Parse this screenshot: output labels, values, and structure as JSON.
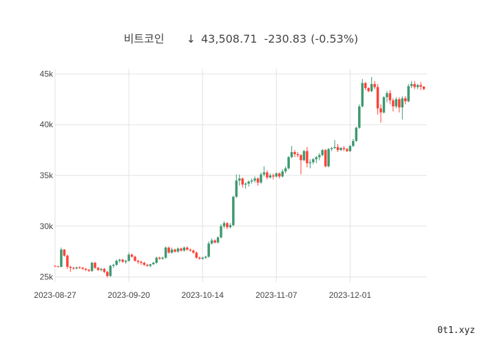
{
  "header": {
    "name": "비트코인",
    "arrow": "↓",
    "price": "43,508.71",
    "change": "-230.83",
    "change_pct": "(-0.53%)"
  },
  "watermark": "0t1.xyz",
  "chart_data": {
    "type": "candlestick",
    "title": "비트코인      ↓ 43,508.71   -230.83 (-0.53%)",
    "xlabel": "",
    "ylabel": "",
    "ylim": [
      24500,
      45500
    ],
    "xlim": [
      "2023-08-27",
      "2023-12-26"
    ],
    "grid": true,
    "legend": "none",
    "x_ticks": [
      "2023-08-27",
      "2023-09-20",
      "2023-10-14",
      "2023-11-07",
      "2023-12-01"
    ],
    "y_ticks": [
      {
        "value": 25000,
        "label": "25k"
      },
      {
        "value": 30000,
        "label": "30k"
      },
      {
        "value": 35000,
        "label": "35k"
      },
      {
        "value": 40000,
        "label": "40k"
      },
      {
        "value": 45000,
        "label": "45k"
      }
    ],
    "colors": {
      "up": "#3d9970",
      "down": "#ff4136"
    },
    "start_date": "2023-08-27",
    "ohlc": [
      [
        26100,
        26150,
        26000,
        26050
      ],
      [
        26050,
        26100,
        25950,
        26000
      ],
      [
        26000,
        27900,
        25950,
        27700
      ],
      [
        27700,
        27750,
        27000,
        27100
      ],
      [
        27100,
        27200,
        25800,
        26000
      ],
      [
        26000,
        26100,
        25500,
        25900
      ],
      [
        25900,
        26000,
        25700,
        25850
      ],
      [
        25850,
        26000,
        25750,
        25950
      ],
      [
        25950,
        26050,
        25800,
        25900
      ],
      [
        25900,
        26000,
        25700,
        25800
      ],
      [
        25800,
        25900,
        25600,
        25700
      ],
      [
        25700,
        25800,
        25500,
        25600
      ],
      [
        25600,
        26500,
        25500,
        26400
      ],
      [
        26400,
        26500,
        25800,
        25900
      ],
      [
        25900,
        26000,
        25600,
        25700
      ],
      [
        25700,
        25900,
        25550,
        25800
      ],
      [
        25800,
        25900,
        25400,
        25500
      ],
      [
        25500,
        25600,
        24950,
        25100
      ],
      [
        25100,
        26200,
        25000,
        26100
      ],
      [
        26100,
        26300,
        25900,
        26200
      ],
      [
        26200,
        26700,
        26100,
        26600
      ],
      [
        26600,
        26800,
        26400,
        26700
      ],
      [
        26700,
        26800,
        26400,
        26500
      ],
      [
        26500,
        26700,
        26300,
        26600
      ],
      [
        26600,
        27400,
        26500,
        27200
      ],
      [
        27200,
        27300,
        26900,
        27000
      ],
      [
        27000,
        27100,
        26500,
        26600
      ],
      [
        26600,
        26700,
        26300,
        26500
      ],
      [
        26500,
        26600,
        26200,
        26400
      ],
      [
        26400,
        26500,
        26100,
        26200
      ],
      [
        26200,
        26300,
        26000,
        26100
      ],
      [
        26100,
        26300,
        25950,
        26250
      ],
      [
        26250,
        26500,
        26200,
        26400
      ],
      [
        26400,
        27000,
        26300,
        26900
      ],
      [
        26900,
        27000,
        26700,
        26800
      ],
      [
        26800,
        27000,
        26700,
        26900
      ],
      [
        26900,
        28000,
        26800,
        27900
      ],
      [
        27900,
        28000,
        27300,
        27400
      ],
      [
        27400,
        27900,
        27300,
        27700
      ],
      [
        27700,
        27800,
        27400,
        27500
      ],
      [
        27500,
        27900,
        27400,
        27800
      ],
      [
        27800,
        27900,
        27500,
        27600
      ],
      [
        27600,
        28000,
        27500,
        27900
      ],
      [
        27900,
        28000,
        27600,
        27700
      ],
      [
        27700,
        27800,
        27500,
        27600
      ],
      [
        27600,
        27700,
        27300,
        27400
      ],
      [
        27400,
        27500,
        26800,
        26900
      ],
      [
        26900,
        27000,
        26700,
        26800
      ],
      [
        26800,
        27000,
        26700,
        26900
      ],
      [
        26900,
        27100,
        26800,
        27000
      ],
      [
        27000,
        28500,
        26900,
        28300
      ],
      [
        28300,
        28800,
        28200,
        28600
      ],
      [
        28600,
        28700,
        28300,
        28400
      ],
      [
        28400,
        29000,
        28300,
        28900
      ],
      [
        28900,
        30200,
        28800,
        30000
      ],
      [
        30000,
        30500,
        29800,
        30300
      ],
      [
        30300,
        30400,
        29700,
        29900
      ],
      [
        29900,
        30300,
        29800,
        30100
      ],
      [
        30100,
        33000,
        30000,
        32900
      ],
      [
        32900,
        35100,
        32800,
        34500
      ],
      [
        34500,
        35100,
        34000,
        34700
      ],
      [
        34700,
        34800,
        33800,
        34100
      ],
      [
        34100,
        34300,
        33700,
        34200
      ],
      [
        34200,
        34500,
        33900,
        34400
      ],
      [
        34400,
        34700,
        34200,
        34500
      ],
      [
        34500,
        34900,
        34300,
        34700
      ],
      [
        34700,
        34800,
        34000,
        34300
      ],
      [
        34300,
        35300,
        34200,
        35100
      ],
      [
        35100,
        35900,
        34900,
        35300
      ],
      [
        35300,
        35500,
        34600,
        34800
      ],
      [
        34800,
        35200,
        34700,
        35000
      ],
      [
        35000,
        35200,
        34600,
        34900
      ],
      [
        34900,
        35300,
        34800,
        35200
      ],
      [
        35200,
        35300,
        34700,
        34900
      ],
      [
        34900,
        35600,
        34800,
        35400
      ],
      [
        35400,
        35900,
        35200,
        35700
      ],
      [
        35700,
        36900,
        35600,
        36800
      ],
      [
        36800,
        37900,
        36700,
        37300
      ],
      [
        37300,
        37500,
        36800,
        37100
      ],
      [
        37100,
        37300,
        36800,
        37000
      ],
      [
        37000,
        37100,
        35100,
        36500
      ],
      [
        36500,
        37500,
        36400,
        37400
      ],
      [
        37400,
        37800,
        35800,
        36200
      ],
      [
        36200,
        36600,
        35700,
        36300
      ],
      [
        36300,
        36700,
        36100,
        36600
      ],
      [
        36600,
        36900,
        36200,
        36800
      ],
      [
        36800,
        37200,
        36500,
        37000
      ],
      [
        37000,
        37600,
        36900,
        37500
      ],
      [
        37500,
        37600,
        35800,
        35900
      ],
      [
        35900,
        37700,
        35800,
        37600
      ],
      [
        37600,
        37800,
        37400,
        37700
      ],
      [
        37700,
        38500,
        37600,
        37800
      ],
      [
        37800,
        38100,
        37300,
        37500
      ],
      [
        37500,
        37800,
        37400,
        37700
      ],
      [
        37700,
        37900,
        37400,
        37600
      ],
      [
        37600,
        37700,
        37300,
        37400
      ],
      [
        37400,
        38000,
        37300,
        37900
      ],
      [
        37900,
        38600,
        37800,
        38400
      ],
      [
        38400,
        39800,
        38300,
        39700
      ],
      [
        39700,
        42000,
        39600,
        41800
      ],
      [
        41800,
        44500,
        41700,
        44100
      ],
      [
        44100,
        44200,
        43400,
        43600
      ],
      [
        43600,
        43700,
        43200,
        43300
      ],
      [
        43300,
        44700,
        43200,
        44000
      ],
      [
        44000,
        44300,
        43500,
        43700
      ],
      [
        43700,
        44000,
        41000,
        41600
      ],
      [
        41600,
        42000,
        40200,
        41200
      ],
      [
        41200,
        42800,
        41100,
        42700
      ],
      [
        42700,
        43300,
        42200,
        43100
      ],
      [
        43100,
        43400,
        42000,
        42400
      ],
      [
        42400,
        42600,
        41300,
        41800
      ],
      [
        41800,
        42700,
        41600,
        42500
      ],
      [
        42500,
        42700,
        41200,
        41700
      ],
      [
        41700,
        42800,
        40500,
        42600
      ],
      [
        42600,
        42800,
        42000,
        42300
      ],
      [
        42300,
        44000,
        42200,
        43800
      ],
      [
        43800,
        44300,
        43600,
        44000
      ],
      [
        44000,
        44300,
        43500,
        43700
      ],
      [
        43700,
        44000,
        43500,
        43900
      ],
      [
        43900,
        44200,
        43400,
        43740
      ],
      [
        43740,
        43800,
        43400,
        43509
      ]
    ]
  }
}
